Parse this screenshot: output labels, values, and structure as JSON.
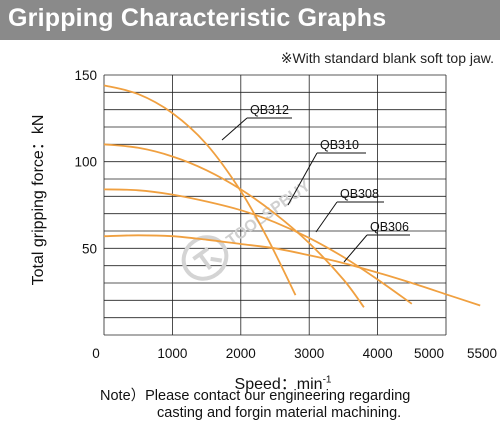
{
  "header": {
    "title": "Gripping Characteristic Graphs",
    "note_top": "※With standard blank soft top jaw."
  },
  "footer": {
    "note_line1": "Note）Please contact our engineering regarding",
    "note_line2": "casting and forgin material machining."
  },
  "watermark": "TOOLSPBUY",
  "colors": {
    "curve": "#f0a040",
    "grid": "#222222",
    "title_bar": "#8a8a8a",
    "leader": "#111111"
  },
  "chart_data": {
    "type": "line",
    "title": "",
    "xlabel": "Speed：min",
    "xlabel_sup": "-1",
    "ylabel": "Total gripping force：kN",
    "xlim": [
      0,
      5500
    ],
    "ylim": [
      0,
      150
    ],
    "x_ticks": [
      "0",
      "1000",
      "2000",
      "3000",
      "4000",
      "5000",
      "5500"
    ],
    "x_tick_values": [
      0,
      1000,
      2000,
      3000,
      4000,
      5000,
      5500
    ],
    "y_ticks": [
      "150",
      "100",
      "50"
    ],
    "y_tick_values": [
      150,
      100,
      50
    ],
    "grid": true,
    "series": [
      {
        "name": "QB312",
        "x": [
          0,
          500,
          1000,
          1500,
          2000,
          2400,
          2800
        ],
        "y": [
          144,
          139,
          128,
          110,
          83,
          55,
          23
        ]
      },
      {
        "name": "QB310",
        "x": [
          0,
          500,
          1000,
          1500,
          2000,
          2500,
          3000,
          3500,
          3800
        ],
        "y": [
          110,
          108,
          103,
          95,
          84,
          70,
          53,
          32,
          16
        ]
      },
      {
        "name": "QB308",
        "x": [
          0,
          500,
          1000,
          1500,
          2000,
          2500,
          3000,
          3500,
          4000,
          4500
        ],
        "y": [
          84,
          83.5,
          81,
          77,
          72,
          65,
          56,
          45,
          32,
          18
        ]
      },
      {
        "name": "QB306",
        "x": [
          0,
          500,
          1000,
          1500,
          2000,
          2500,
          3000,
          3500,
          4000,
          4500,
          5000,
          5500
        ],
        "y": [
          57,
          57.5,
          57,
          55,
          52.5,
          50,
          46,
          41.5,
          36,
          30,
          23.5,
          17
        ]
      }
    ]
  }
}
